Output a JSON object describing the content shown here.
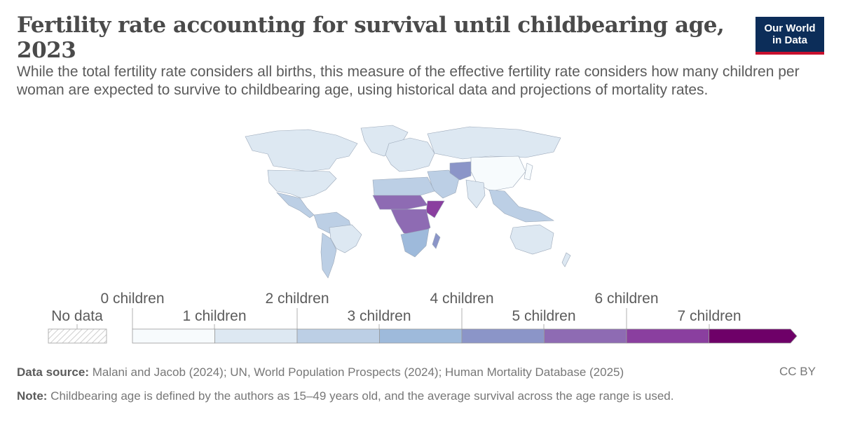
{
  "header": {
    "title": "Fertility rate accounting for survival until childbearing age, 2023",
    "subtitle": "While the total fertility rate considers all births, this measure of the effective fertility rate considers how many children per woman are expected to survive to childbearing age, using historical data and projections of mortality rates.",
    "logo_line1": "Our World",
    "logo_line2": "in Data"
  },
  "colors": {
    "no_data": "hatched",
    "scale": [
      "#f7fbfd",
      "#dde8f2",
      "#bccfe5",
      "#9ebadb",
      "#8b95c8",
      "#8e6bb3",
      "#8a3f9f",
      "#6e0068"
    ]
  },
  "legend": {
    "no_data_label": "No data",
    "top_labels": [
      "0 children",
      "2 children",
      "4 children",
      "6 children"
    ],
    "bottom_labels": [
      "1 children",
      "3 children",
      "5 children",
      "7 children"
    ]
  },
  "footer": {
    "source_label": "Data source:",
    "source_text": " Malani and Jacob (2024); UN, World Population Prospects (2024); Human Mortality Database (2025)",
    "note_label": "Note:",
    "note_text": " Childbearing age is defined by the authors as 15–49 years old, and the average survival across the age range is used.",
    "license": "CC BY"
  }
}
